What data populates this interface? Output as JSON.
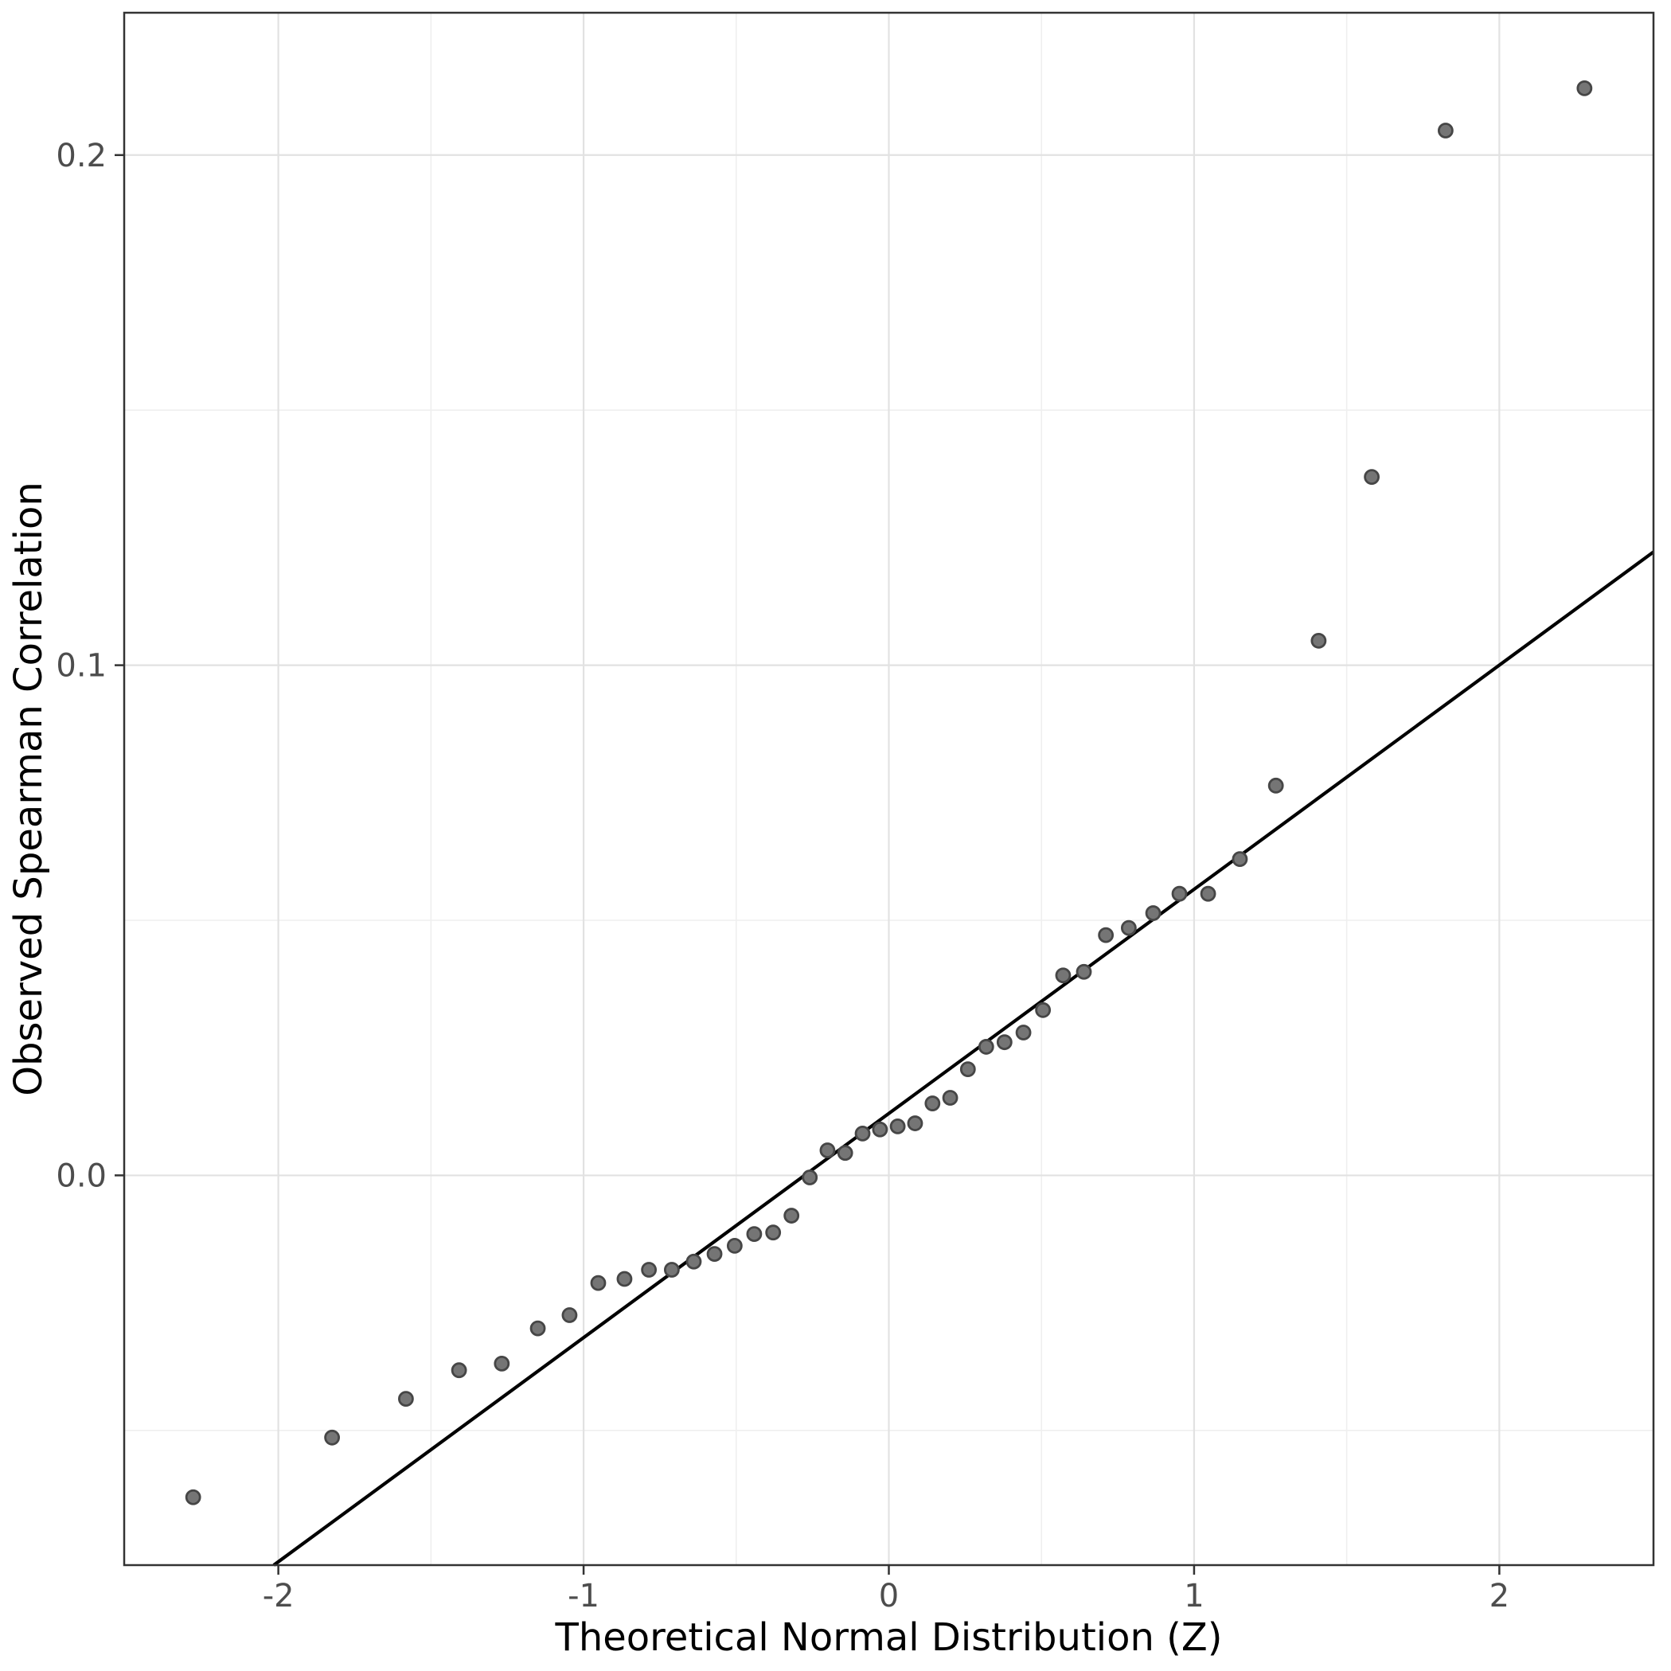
{
  "chart_data": {
    "type": "scatter",
    "title": "",
    "xlabel": "Theoretical Normal Distribution (Z)",
    "ylabel": "Observed Spearman Correlation",
    "xlim": [
      -2.505,
      2.505
    ],
    "ylim": [
      -0.0764,
      0.2279
    ],
    "grid": "major+minor",
    "legend": "none",
    "x_major_ticks": [
      -2,
      -1,
      0,
      1,
      2
    ],
    "x_tick_labels": [
      "-2",
      "-1",
      "0",
      "1",
      "2"
    ],
    "x_minor_ticks": [
      -1.5,
      -0.5,
      0.5,
      1.5
    ],
    "y_major_ticks": [
      0.0,
      0.1,
      0.2
    ],
    "y_tick_labels": [
      "0.0",
      "0.1",
      "0.2"
    ],
    "y_minor_ticks": [
      -0.05,
      0.05,
      0.15
    ],
    "n_points": 44,
    "points": [
      [
        -2.279,
        -0.0631
      ],
      [
        -1.824,
        -0.0514
      ],
      [
        -1.582,
        -0.0438
      ],
      [
        -1.408,
        -0.0382
      ],
      [
        -1.268,
        -0.0369
      ],
      [
        -1.15,
        -0.03
      ],
      [
        -1.046,
        -0.0274
      ],
      [
        -0.952,
        -0.0211
      ],
      [
        -0.866,
        -0.0203
      ],
      [
        -0.786,
        -0.0185
      ],
      [
        -0.711,
        -0.0185
      ],
      [
        -0.639,
        -0.0169
      ],
      [
        -0.571,
        -0.0154
      ],
      [
        -0.505,
        -0.0138
      ],
      [
        -0.441,
        -0.0115
      ],
      [
        -0.379,
        -0.0112
      ],
      [
        -0.319,
        -0.0079
      ],
      [
        -0.259,
        -0.0004
      ],
      [
        -0.201,
        0.0049
      ],
      [
        -0.143,
        0.0044
      ],
      [
        -0.086,
        0.0082
      ],
      [
        -0.029,
        0.009
      ],
      [
        0.029,
        0.0096
      ],
      [
        0.086,
        0.0102
      ],
      [
        0.143,
        0.0141
      ],
      [
        0.201,
        0.0152
      ],
      [
        0.259,
        0.0208
      ],
      [
        0.319,
        0.0252
      ],
      [
        0.379,
        0.0261
      ],
      [
        0.441,
        0.028
      ],
      [
        0.505,
        0.0324
      ],
      [
        0.571,
        0.0392
      ],
      [
        0.639,
        0.0399
      ],
      [
        0.711,
        0.0471
      ],
      [
        0.786,
        0.0485
      ],
      [
        0.866,
        0.0514
      ],
      [
        0.952,
        0.0552
      ],
      [
        1.046,
        0.0552
      ],
      [
        1.15,
        0.062
      ],
      [
        1.268,
        0.0764
      ],
      [
        1.408,
        0.1048
      ],
      [
        1.582,
        0.1369
      ],
      [
        1.824,
        0.2048
      ],
      [
        2.279,
        0.2131
      ]
    ],
    "reference_line": {
      "slope": 0.0439,
      "intercept": 0.0121,
      "x1": -2.015,
      "y1": -0.0764,
      "x2": 2.505,
      "y2": 0.1222
    },
    "colors": {
      "background": "#ffffff",
      "panel_border": "#333333",
      "grid_major": "#e2e2e2",
      "grid_minor": "#efefef",
      "reference_line": "#000000",
      "point_fill": "#757575",
      "point_stroke": "#464646",
      "tick_mark": "#333333",
      "tick_label": "#4d4d4d",
      "axis_title": "#000000"
    },
    "marker": {
      "radius": 8.5,
      "stroke_width": 2.8
    },
    "line_width": 4.2
  }
}
